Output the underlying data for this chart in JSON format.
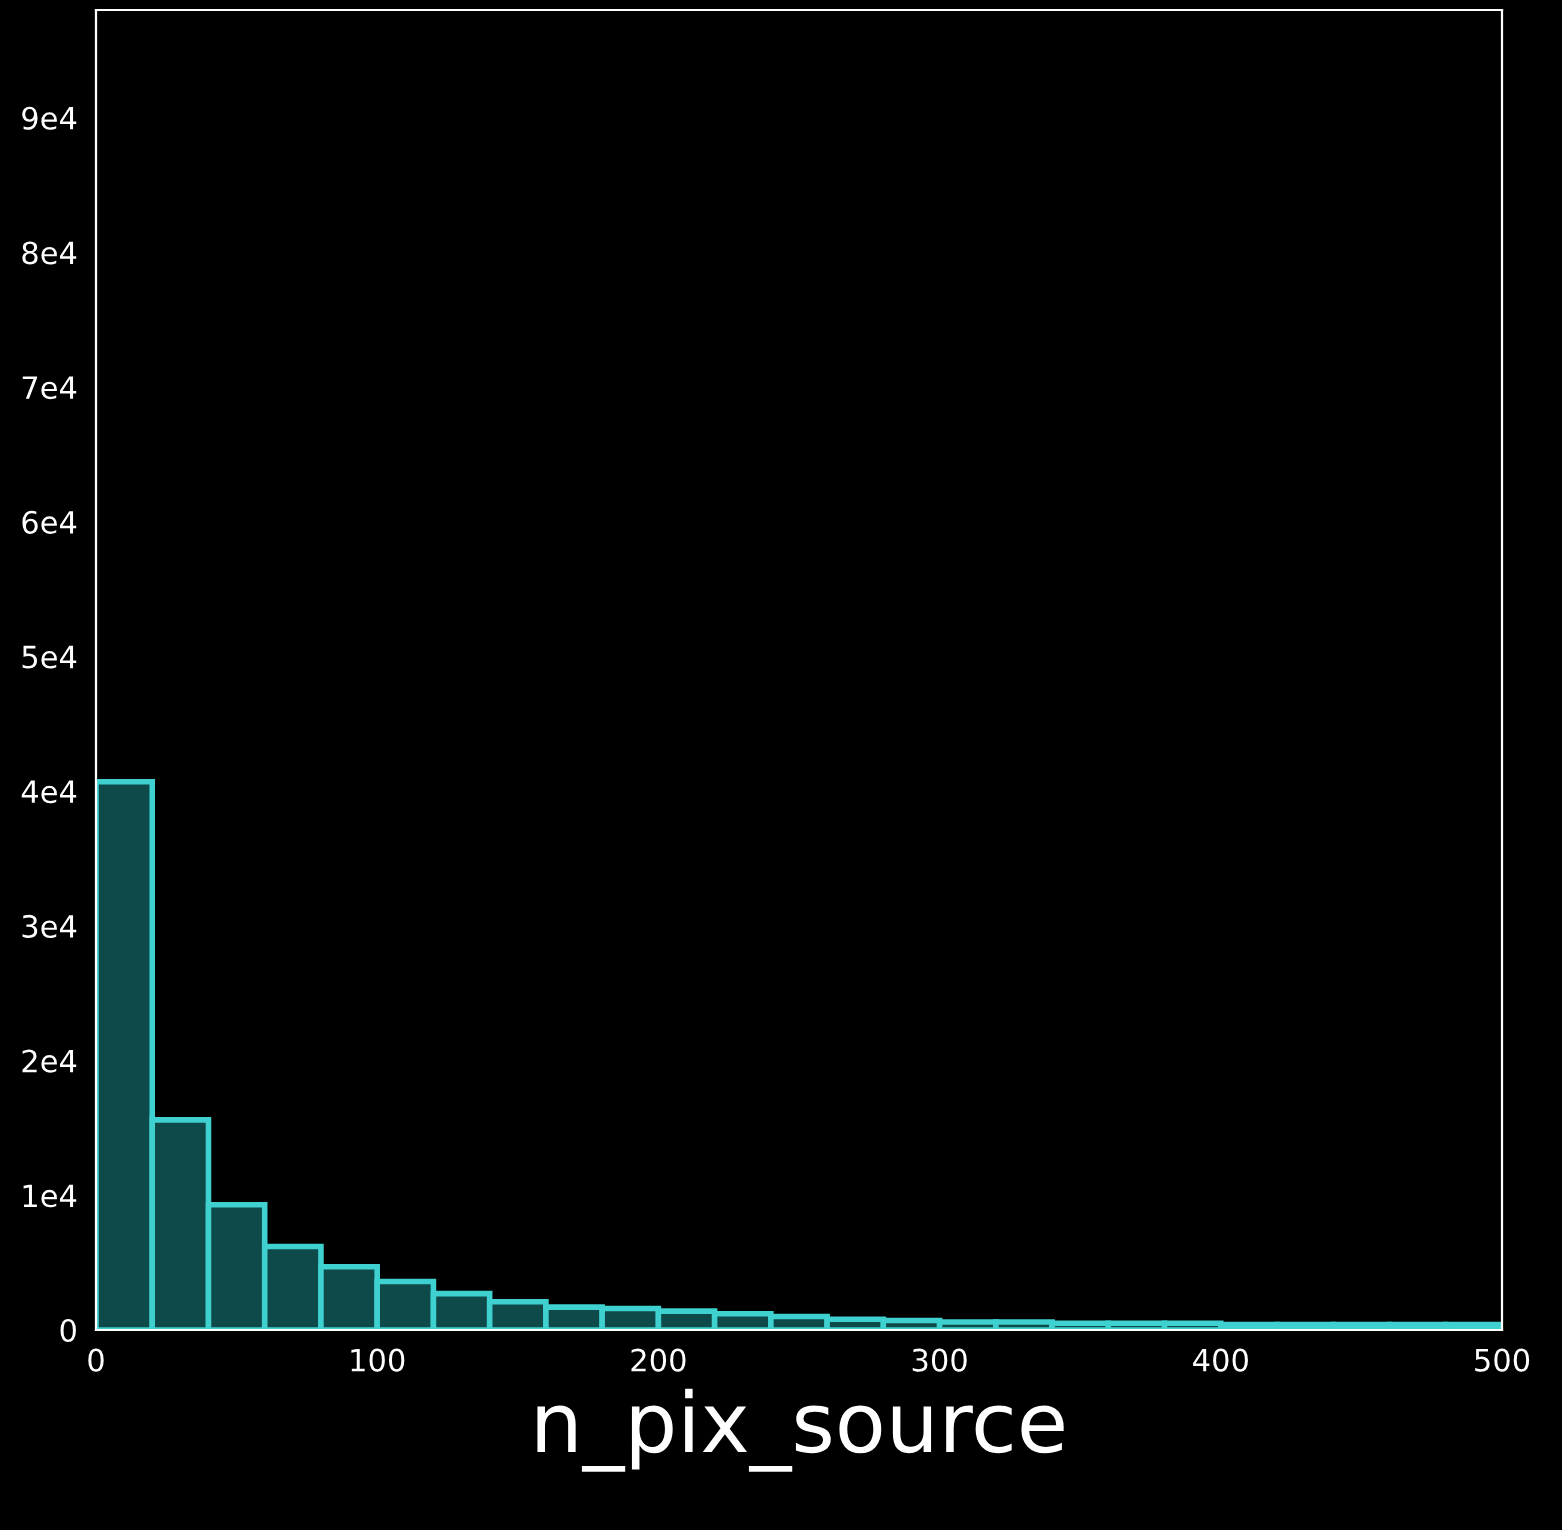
{
  "chart_data": {
    "type": "histogram",
    "xlabel": "n_pix_source",
    "bins": [
      0,
      20,
      40,
      60,
      80,
      100,
      120,
      140,
      160,
      180,
      200,
      220,
      240,
      260,
      280,
      300,
      320,
      340,
      360,
      380,
      400,
      420,
      440,
      460,
      480,
      500
    ],
    "values": [
      40700,
      15600,
      9300,
      6200,
      4700,
      3600,
      2700,
      2100,
      1700,
      1600,
      1400,
      1200,
      1000,
      800,
      700,
      600,
      600,
      500,
      500,
      500,
      400,
      400,
      400,
      400,
      400
    ],
    "color": "#0f4a4a",
    "xlim": [
      0,
      500
    ],
    "xticks": [
      0,
      100,
      200,
      300,
      400,
      500
    ],
    "ylim": [
      0,
      98000
    ],
    "yticks": [
      0,
      {
        "value": 10000,
        "label": "1e4"
      },
      {
        "value": 20000,
        "label": "2e4"
      },
      {
        "value": 30000,
        "label": "3e4"
      },
      {
        "value": 40000,
        "label": "4e4"
      },
      {
        "value": 50000,
        "label": "5e4"
      },
      {
        "value": 60000,
        "label": "6e4"
      },
      {
        "value": 70000,
        "label": "7e4"
      },
      {
        "value": 80000,
        "label": "8e4"
      },
      {
        "value": 90000,
        "label": "9e4"
      }
    ],
    "grid": false
  }
}
